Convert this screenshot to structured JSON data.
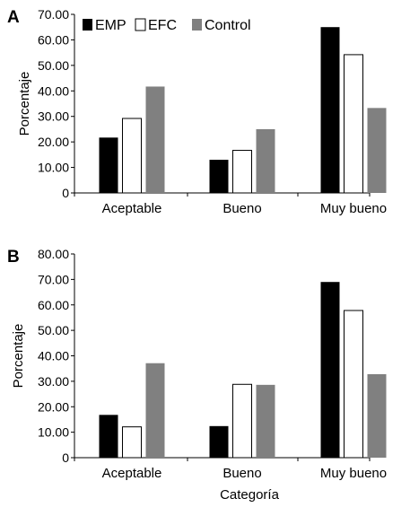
{
  "panels": [
    {
      "letter": "A"
    },
    {
      "letter": "B"
    }
  ],
  "xlabel_shared": "Categoría",
  "legend": {
    "placement": "top-left",
    "entries": [
      {
        "name": "EMP",
        "color": "#000000",
        "fill_style": "solid"
      },
      {
        "name": "EFC",
        "color": "#ffffff",
        "fill_style": "outline"
      },
      {
        "name": "Control",
        "color": "#808080",
        "fill_style": "solid"
      }
    ]
  },
  "chart_data": [
    {
      "type": "bar",
      "panel": "A",
      "ylabel": "Porcentaje",
      "xlabel": "",
      "ylim": [
        0,
        70
      ],
      "yticks": [
        "0",
        "10.00",
        "20.00",
        "30.00",
        "40.00",
        "50.00",
        "60.00",
        "70.00"
      ],
      "ytick_values": [
        0,
        10,
        20,
        30,
        40,
        50,
        60,
        70
      ],
      "categories": [
        "Aceptable",
        "Bueno",
        "Muy bueno"
      ],
      "series": [
        {
          "name": "EMP",
          "color": "#000000",
          "values": [
            21.7,
            13.0,
            65.0
          ]
        },
        {
          "name": "EFC",
          "color": "#ffffff",
          "values": [
            29.2,
            16.7,
            54.2
          ]
        },
        {
          "name": "Control",
          "color": "#808080",
          "values": [
            41.7,
            25.0,
            33.3
          ]
        }
      ],
      "grid": false
    },
    {
      "type": "bar",
      "panel": "B",
      "ylabel": "Porcentaje",
      "xlabel": "Categoría",
      "ylim": [
        0,
        80
      ],
      "yticks": [
        "0",
        "10.00",
        "20.00",
        "30.00",
        "40.00",
        "50.00",
        "60.00",
        "70.00",
        "80.00"
      ],
      "ytick_values": [
        0,
        10,
        20,
        30,
        40,
        50,
        60,
        70,
        80
      ],
      "categories": [
        "Aceptable",
        "Bueno",
        "Muy bueno"
      ],
      "series": [
        {
          "name": "EMP",
          "color": "#000000",
          "values": [
            16.8,
            12.4,
            69.0
          ]
        },
        {
          "name": "EFC",
          "color": "#ffffff",
          "values": [
            12.1,
            28.8,
            57.8
          ]
        },
        {
          "name": "Control",
          "color": "#808080",
          "values": [
            37.1,
            28.6,
            32.8
          ]
        }
      ],
      "grid": false
    }
  ]
}
